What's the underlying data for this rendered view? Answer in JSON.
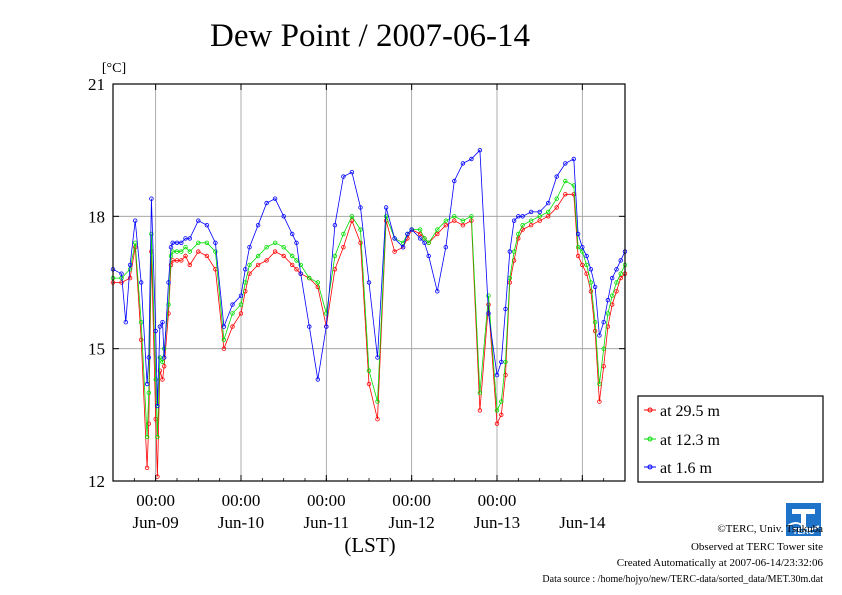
{
  "chart_data": {
    "type": "line",
    "title": "Dew Point / 2007-06-14",
    "ylabel": "[°C]",
    "xlabel": "(LST)",
    "ylim": [
      12,
      21
    ],
    "ytick_labels": [
      "12",
      "15",
      "18",
      "21"
    ],
    "yticks": [
      12,
      15,
      18,
      21
    ],
    "xlim": [
      0,
      6
    ],
    "x_unit": "days since Jun-08 12:00",
    "xtick_top_labels": [
      "00:00",
      "00:00",
      "00:00",
      "00:00",
      "00:00"
    ],
    "xtick_date_labels": [
      "Jun-09",
      "Jun-10",
      "Jun-11",
      "Jun-12",
      "Jun-13",
      "Jun-14"
    ],
    "x_grid_positions": [
      0.5,
      1.5,
      2.5,
      3.5,
      4.5,
      5.5
    ],
    "grid": true,
    "legend_position": "right-bottom",
    "series": [
      {
        "name": "at 29.5 m",
        "color": "#ff0000",
        "x": [
          0.0,
          0.1,
          0.2,
          0.26,
          0.33,
          0.4,
          0.42,
          0.45,
          0.5,
          0.52,
          0.55,
          0.58,
          0.6,
          0.65,
          0.68,
          0.7,
          0.75,
          0.8,
          0.85,
          0.9,
          1.0,
          1.1,
          1.2,
          1.3,
          1.4,
          1.5,
          1.55,
          1.6,
          1.7,
          1.8,
          1.9,
          2.0,
          2.1,
          2.15,
          2.2,
          2.3,
          2.4,
          2.5,
          2.6,
          2.7,
          2.8,
          2.9,
          3.0,
          3.1,
          3.2,
          3.3,
          3.4,
          3.45,
          3.5,
          3.6,
          3.65,
          3.7,
          3.8,
          3.9,
          4.0,
          4.1,
          4.2,
          4.3,
          4.4,
          4.5,
          4.55,
          4.6,
          4.65,
          4.7,
          4.75,
          4.8,
          4.9,
          5.0,
          5.1,
          5.2,
          5.3,
          5.4,
          5.45,
          5.5,
          5.55,
          5.6,
          5.65,
          5.7,
          5.75,
          5.8,
          5.85,
          5.9,
          5.95,
          6.0
        ],
        "values": [
          16.5,
          16.5,
          16.6,
          17.3,
          15.2,
          12.3,
          13.3,
          17.2,
          13.4,
          12.1,
          14.5,
          14.3,
          14.6,
          15.8,
          16.9,
          17.0,
          17.0,
          17.0,
          17.1,
          16.9,
          17.2,
          17.1,
          16.8,
          15.0,
          15.5,
          15.8,
          16.3,
          16.7,
          16.9,
          17.0,
          17.2,
          17.1,
          16.9,
          16.8,
          16.7,
          16.6,
          16.4,
          15.5,
          16.8,
          17.3,
          17.9,
          17.4,
          14.2,
          13.4,
          17.9,
          17.2,
          17.3,
          17.5,
          17.7,
          17.6,
          17.5,
          17.4,
          17.6,
          17.8,
          17.9,
          17.8,
          17.9,
          13.6,
          16.0,
          13.3,
          13.5,
          14.4,
          16.5,
          17.0,
          17.5,
          17.7,
          17.8,
          17.9,
          18.0,
          18.2,
          18.5,
          18.5,
          17.1,
          16.9,
          16.7,
          16.3,
          15.4,
          13.8,
          14.6,
          15.5,
          16.0,
          16.3,
          16.6,
          16.7
        ]
      },
      {
        "name": "at 12.3 m",
        "color": "#00dd00",
        "x": [
          0.0,
          0.1,
          0.2,
          0.26,
          0.33,
          0.4,
          0.42,
          0.45,
          0.5,
          0.52,
          0.55,
          0.58,
          0.6,
          0.65,
          0.68,
          0.7,
          0.75,
          0.8,
          0.85,
          0.9,
          1.0,
          1.1,
          1.2,
          1.3,
          1.4,
          1.5,
          1.55,
          1.6,
          1.7,
          1.8,
          1.9,
          2.0,
          2.1,
          2.15,
          2.2,
          2.3,
          2.4,
          2.5,
          2.6,
          2.7,
          2.8,
          2.9,
          3.0,
          3.1,
          3.2,
          3.3,
          3.4,
          3.45,
          3.5,
          3.6,
          3.65,
          3.7,
          3.8,
          3.9,
          4.0,
          4.1,
          4.2,
          4.3,
          4.4,
          4.5,
          4.55,
          4.6,
          4.65,
          4.7,
          4.75,
          4.8,
          4.9,
          5.0,
          5.1,
          5.2,
          5.3,
          5.4,
          5.45,
          5.5,
          5.55,
          5.6,
          5.65,
          5.7,
          5.75,
          5.8,
          5.85,
          5.9,
          5.95,
          6.0
        ],
        "values": [
          16.6,
          16.6,
          16.8,
          17.4,
          15.6,
          13.0,
          14.0,
          17.6,
          14.3,
          13.0,
          14.8,
          14.7,
          15.0,
          16.0,
          17.1,
          17.2,
          17.2,
          17.2,
          17.3,
          17.2,
          17.4,
          17.4,
          17.2,
          15.2,
          15.8,
          16.0,
          16.5,
          16.9,
          17.1,
          17.3,
          17.4,
          17.3,
          17.1,
          17.0,
          16.9,
          16.6,
          16.5,
          15.8,
          17.1,
          17.6,
          18.0,
          17.7,
          14.5,
          13.8,
          18.0,
          17.5,
          17.4,
          17.6,
          17.7,
          17.7,
          17.5,
          17.4,
          17.7,
          17.9,
          18.0,
          17.9,
          18.0,
          14.0,
          16.2,
          13.6,
          13.8,
          14.7,
          16.6,
          17.2,
          17.6,
          17.8,
          17.9,
          18.0,
          18.1,
          18.4,
          18.8,
          18.7,
          17.3,
          17.2,
          16.9,
          16.5,
          15.6,
          14.2,
          15.0,
          15.8,
          16.2,
          16.5,
          16.7,
          16.9
        ]
      },
      {
        "name": "at 1.6 m",
        "color": "#0000ff",
        "x": [
          0.0,
          0.1,
          0.15,
          0.2,
          0.26,
          0.33,
          0.4,
          0.42,
          0.45,
          0.5,
          0.52,
          0.55,
          0.58,
          0.6,
          0.65,
          0.68,
          0.7,
          0.75,
          0.8,
          0.85,
          0.9,
          1.0,
          1.1,
          1.2,
          1.3,
          1.4,
          1.5,
          1.55,
          1.6,
          1.7,
          1.8,
          1.9,
          2.0,
          2.1,
          2.15,
          2.2,
          2.3,
          2.4,
          2.5,
          2.6,
          2.7,
          2.8,
          2.9,
          3.0,
          3.1,
          3.2,
          3.3,
          3.4,
          3.45,
          3.5,
          3.6,
          3.65,
          3.7,
          3.8,
          3.9,
          4.0,
          4.1,
          4.2,
          4.3,
          4.4,
          4.5,
          4.55,
          4.6,
          4.65,
          4.7,
          4.75,
          4.8,
          4.9,
          5.0,
          5.1,
          5.2,
          5.3,
          5.4,
          5.45,
          5.5,
          5.55,
          5.6,
          5.65,
          5.7,
          5.75,
          5.8,
          5.85,
          5.9,
          5.95,
          6.0
        ],
        "values": [
          16.8,
          16.7,
          15.6,
          16.9,
          17.9,
          16.5,
          14.2,
          14.8,
          18.4,
          15.4,
          13.7,
          15.5,
          15.6,
          14.8,
          16.5,
          17.3,
          17.4,
          17.4,
          17.4,
          17.5,
          17.5,
          17.9,
          17.8,
          17.4,
          15.5,
          16.0,
          16.2,
          16.8,
          17.3,
          17.8,
          18.3,
          18.4,
          18.0,
          17.6,
          17.4,
          16.7,
          15.5,
          14.3,
          15.5,
          17.8,
          18.9,
          19.0,
          18.2,
          16.5,
          14.8,
          18.2,
          17.5,
          17.3,
          17.6,
          17.7,
          17.5,
          17.4,
          17.1,
          16.3,
          17.3,
          18.8,
          19.2,
          19.3,
          19.5,
          15.8,
          14.4,
          14.7,
          15.9,
          17.2,
          17.9,
          18.0,
          18.0,
          18.1,
          18.1,
          18.3,
          18.9,
          19.2,
          19.3,
          17.6,
          17.3,
          17.1,
          16.8,
          16.4,
          15.3,
          15.6,
          16.1,
          16.6,
          16.8,
          17.0,
          17.2
        ]
      }
    ]
  },
  "header": {
    "unit_label": "[°C]"
  },
  "footer": {
    "copyright": "©TERC, Univ. Tsukuba",
    "observed": "Observed at TERC Tower site",
    "created": "Created Automatically at 2007-06-14/23:32:06",
    "source": "Data source : /home/hojyo/new/TERC-data/sorted_data/MET.30m.dat",
    "logo_text": "TERC"
  }
}
